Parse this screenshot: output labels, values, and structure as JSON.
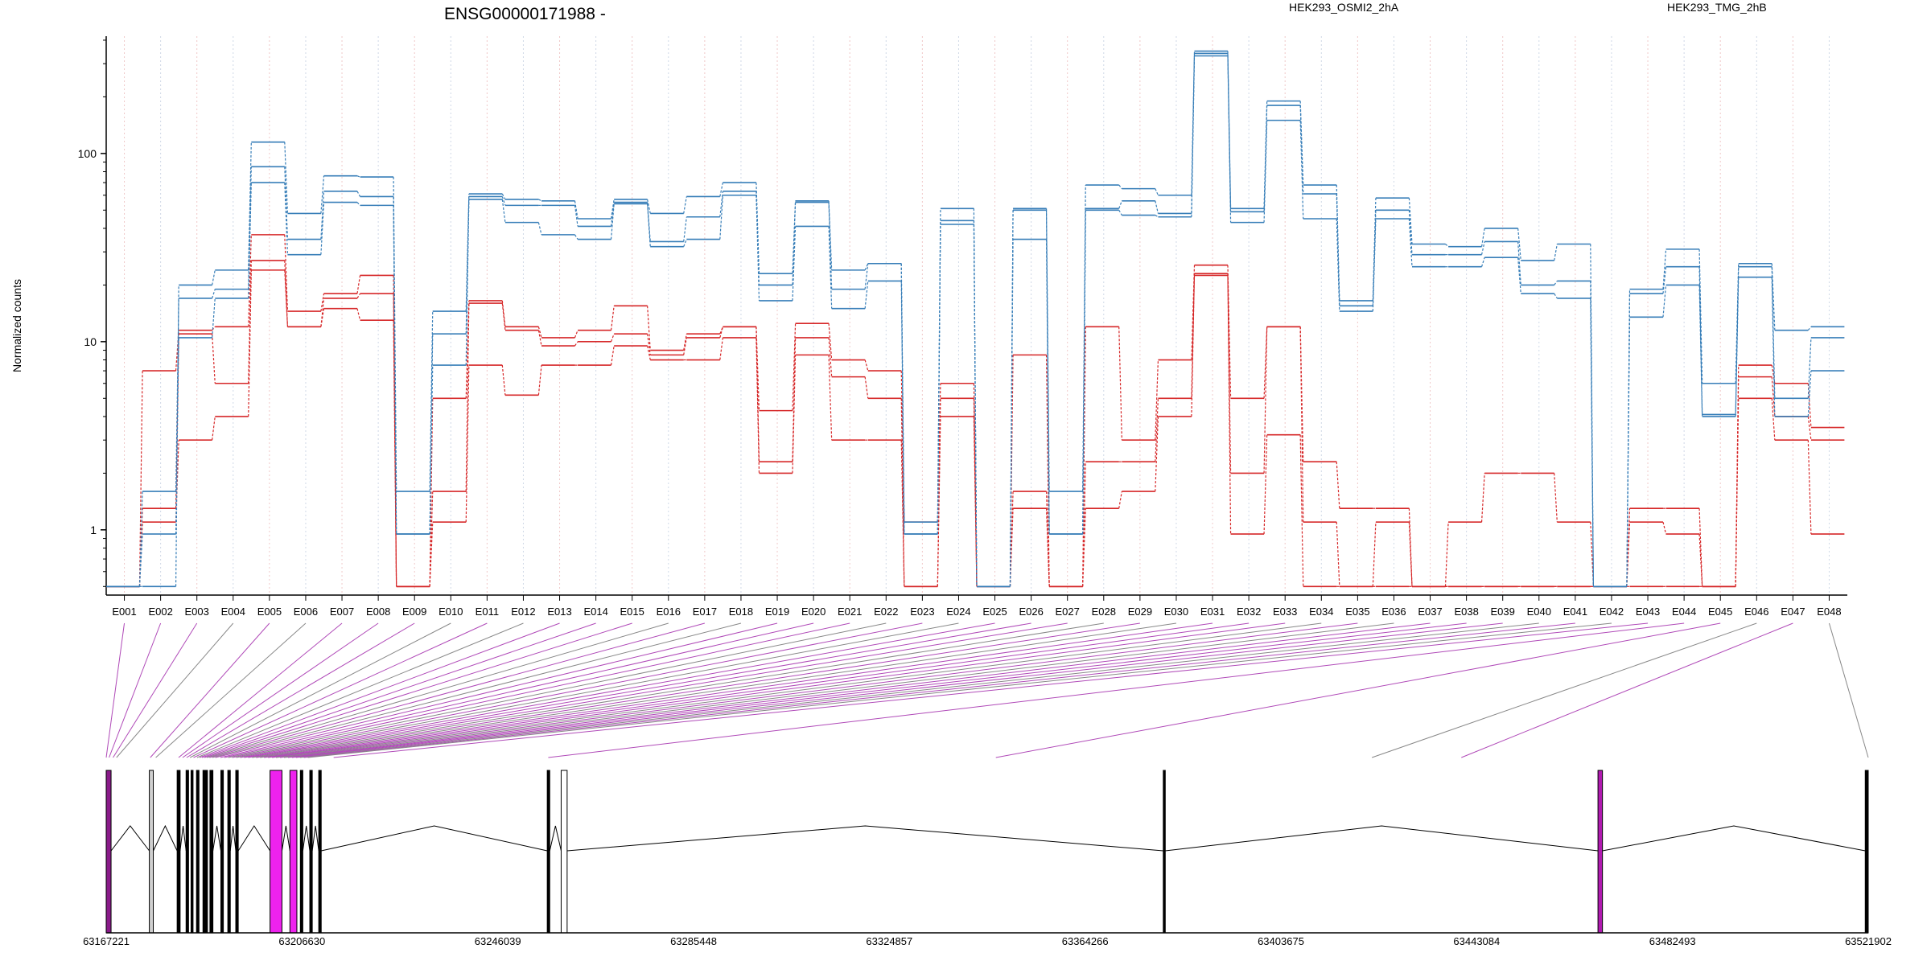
{
  "chart_data": {
    "type": "line",
    "title": "ENSG00000171988 -",
    "ylabel": "Normalized counts",
    "yscale": "log",
    "ylim": [
      0.45,
      420
    ],
    "yticks": [
      "1",
      "10",
      "100"
    ],
    "grid": "vertical dotted lines at each exon",
    "legend_placement": "top, horizontal",
    "categories": [
      "E001",
      "E002",
      "E003",
      "E004",
      "E005",
      "E006",
      "E007",
      "E008",
      "E009",
      "E010",
      "E011",
      "E012",
      "E013",
      "E014",
      "E015",
      "E016",
      "E017",
      "E018",
      "E019",
      "E020",
      "E021",
      "E022",
      "E023",
      "E024",
      "E025",
      "E026",
      "E027",
      "E028",
      "E029",
      "E030",
      "E031",
      "E032",
      "E033",
      "E034",
      "E035",
      "E036",
      "E037",
      "E038",
      "E039",
      "E040",
      "E041",
      "E042",
      "E043",
      "E044",
      "E045",
      "E046",
      "E047",
      "E048"
    ],
    "groups": [
      {
        "name": "HEK293_OSMI2_2hA",
        "color": "#d62728",
        "series": [
          {
            "values": [
              0.5,
              1.1,
              3,
              4,
              24,
              12,
              15,
              13,
              0.5,
              1.1,
              7.5,
              5.2,
              7.5,
              7.5,
              9.5,
              8,
              8,
              10.5,
              2,
              8.5,
              3,
              3,
              0.5,
              4,
              0.5,
              1.3,
              0.5,
              1.3,
              1.6,
              4,
              23,
              0.95,
              3.2,
              0.5,
              0.5,
              0.5,
              0.5,
              0.5,
              0.5,
              0.5,
              0.5,
              0.5,
              0.5,
              0.5,
              0.5,
              5,
              3,
              0.95
            ]
          },
          {
            "values": [
              0.5,
              1.3,
              11,
              6,
              27,
              12,
              17,
              18,
              0.5,
              1.6,
              16,
              11.5,
              9.5,
              10,
              11,
              8.5,
              10.5,
              12,
              2.3,
              10.5,
              6.5,
              5,
              0.5,
              5,
              0.5,
              1.6,
              0.5,
              2.3,
              2.3,
              5,
              22.5,
              2,
              12,
              1.1,
              0.5,
              1.1,
              0.5,
              1.1,
              2,
              2,
              1.1,
              0.5,
              1.1,
              0.95,
              0.5,
              6.5,
              4,
              3
            ]
          },
          {
            "values": [
              0.5,
              7,
              11.5,
              12,
              37,
              14.5,
              18,
              22.5,
              0.5,
              5,
              16.5,
              12,
              10.5,
              11.5,
              15.5,
              9,
              11,
              12,
              4.3,
              12.5,
              8,
              7,
              1.1,
              6,
              0.5,
              8.5,
              0.5,
              12,
              3,
              8,
              25.5,
              5,
              12,
              2.3,
              1.3,
              1.3,
              0.5,
              0.5,
              0.5,
              0.5,
              0.5,
              0.5,
              1.3,
              1.3,
              0.5,
              7.5,
              6,
              3.5
            ]
          }
        ]
      },
      {
        "name": "HEK293_TMG_2hB",
        "color": "#377eb8",
        "series": [
          {
            "values": [
              0.5,
              0.95,
              10.5,
              17,
              70,
              29,
              55,
              53,
              0.95,
              7.5,
              57,
              43,
              37,
              35,
              54,
              32,
              35,
              60,
              16.5,
              41,
              15,
              21,
              0.95,
              42,
              0.5,
              35,
              0.95,
              50,
              47,
              46,
              330,
              43,
              150,
              45,
              14.5,
              45,
              25,
              25,
              28,
              18,
              17,
              0.5,
              13.5,
              20,
              4,
              22,
              4,
              7
            ]
          },
          {
            "values": [
              0.5,
              1.6,
              17,
              19,
              85,
              35,
              63,
              59,
              0.95,
              11,
              59,
              53,
              53,
              41,
              55,
              34,
              46,
              63,
              20,
              55,
              19,
              26,
              0.95,
              44,
              0.5,
              50,
              0.95,
              51,
              56,
              48,
              340,
              49,
              180,
              61,
              15.5,
              50,
              29,
              29,
              34,
              20,
              21,
              0.5,
              18,
              25,
              4.1,
              25,
              5,
              10.5
            ]
          },
          {
            "values": [
              0.5,
              0.5,
              20,
              24,
              115,
              48,
              76,
              75,
              1.6,
              14.5,
              61,
              57,
              56,
              45,
              57,
              48,
              59,
              70,
              23,
              56,
              24,
              26,
              1.1,
              51,
              0.5,
              51,
              1.6,
              68,
              65,
              60,
              350,
              51,
              190,
              68,
              16.5,
              58,
              33,
              32,
              40,
              27,
              33,
              0.5,
              19,
              31,
              6,
              26,
              11.5,
              12
            ]
          }
        ]
      }
    ],
    "genomic_axis": {
      "ticks": [
        "63167221",
        "63206630",
        "63246039",
        "63285448",
        "63324857",
        "63364266",
        "63403675",
        "63443084",
        "63482493",
        "63521902"
      ],
      "start": 63167221,
      "end": 63521902
    }
  }
}
